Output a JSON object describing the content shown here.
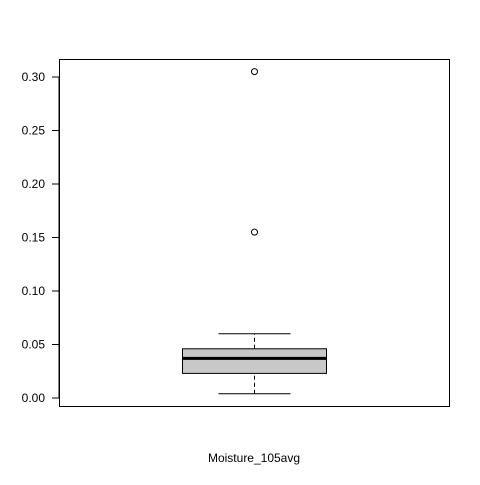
{
  "chart_data": {
    "type": "box",
    "title": "",
    "xlabel": "Moisture_105avg",
    "ylabel": "",
    "ylim": [
      0.0,
      0.305
    ],
    "yticks": [
      0.0,
      0.05,
      0.1,
      0.15,
      0.2,
      0.25,
      0.3
    ],
    "ytick_labels": [
      "0.00",
      "0.05",
      "0.10",
      "0.15",
      "0.20",
      "0.25",
      "0.30"
    ],
    "grid": false,
    "legend": "none",
    "box": {
      "whisker_low": 0.004,
      "q1": 0.023,
      "median": 0.037,
      "q3": 0.046,
      "whisker_high": 0.06,
      "outliers": [
        0.155,
        0.305
      ]
    },
    "colors": {
      "box_fill": "#c8c8c8",
      "stroke": "#000000",
      "background": "#ffffff"
    }
  }
}
